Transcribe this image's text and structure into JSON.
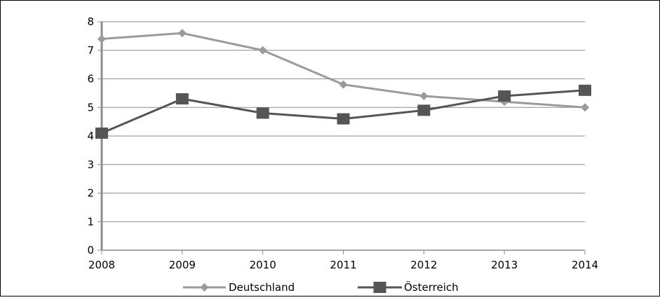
{
  "chart_data": {
    "type": "line",
    "title": "",
    "xlabel": "",
    "ylabel": "",
    "categories": [
      "2008",
      "2009",
      "2010",
      "2011",
      "2012",
      "2013",
      "2014"
    ],
    "ylim": [
      0,
      8
    ],
    "yticks": [
      "0",
      "1",
      "2",
      "3",
      "4",
      "5",
      "6",
      "7",
      "8"
    ],
    "grid": true,
    "legend_position": "bottom",
    "series": [
      {
        "name": "Deutschland",
        "values": [
          7.4,
          7.6,
          7.0,
          5.8,
          5.4,
          5.2,
          5.0
        ],
        "color": "#9a9a9a",
        "marker": "diamond"
      },
      {
        "name": "Österreich",
        "values": [
          4.1,
          5.3,
          4.8,
          4.6,
          4.9,
          5.4,
          5.6
        ],
        "color": "#555555",
        "marker": "square"
      }
    ]
  }
}
